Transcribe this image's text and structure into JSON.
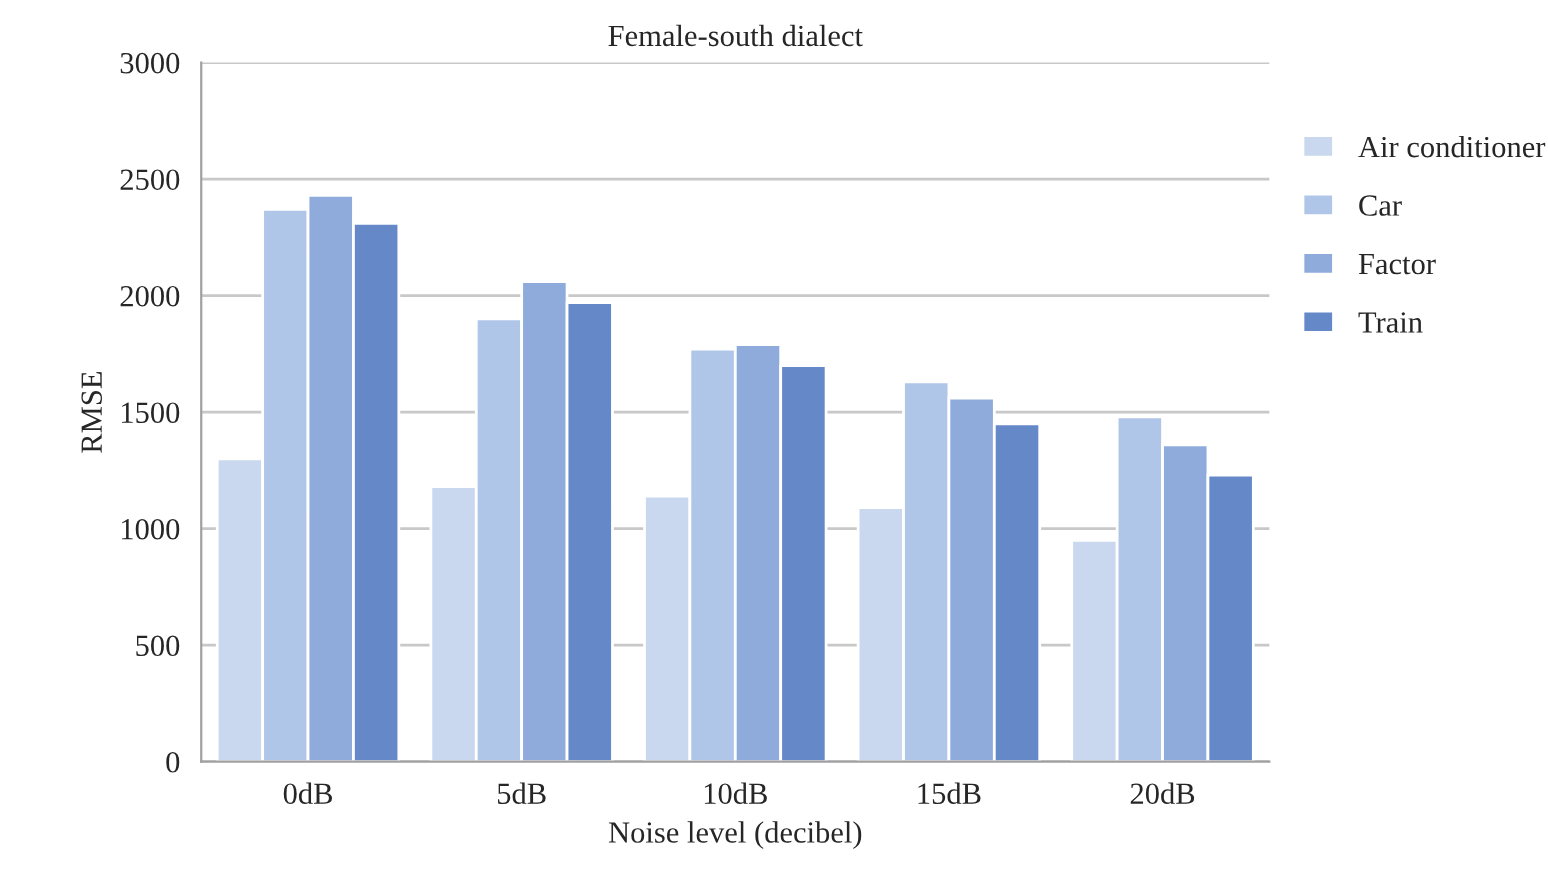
{
  "chart_data": {
    "type": "bar",
    "title": "Female-south dialect",
    "xlabel": "Noise level (decibel)",
    "ylabel": "RMSE",
    "categories": [
      "0dB",
      "5dB",
      "10dB",
      "15dB",
      "20dB"
    ],
    "series": [
      {
        "name": "Air conditioner",
        "color": "#c9d8ee",
        "values": [
          1300,
          1180,
          1140,
          1090,
          950
        ]
      },
      {
        "name": "Car",
        "color": "#b0c6e8",
        "values": [
          2370,
          1900,
          1770,
          1630,
          1480
        ]
      },
      {
        "name": "Factor",
        "color": "#8eabdb",
        "values": [
          2430,
          2060,
          1790,
          1560,
          1360
        ]
      },
      {
        "name": "Train",
        "color": "#6589c8",
        "values": [
          2310,
          1970,
          1700,
          1450,
          1230
        ]
      }
    ],
    "ylim": [
      0,
      3000
    ],
    "yticks": [
      0,
      500,
      1000,
      1500,
      2000,
      2500,
      3000
    ],
    "grid": "y",
    "legend": "right"
  }
}
